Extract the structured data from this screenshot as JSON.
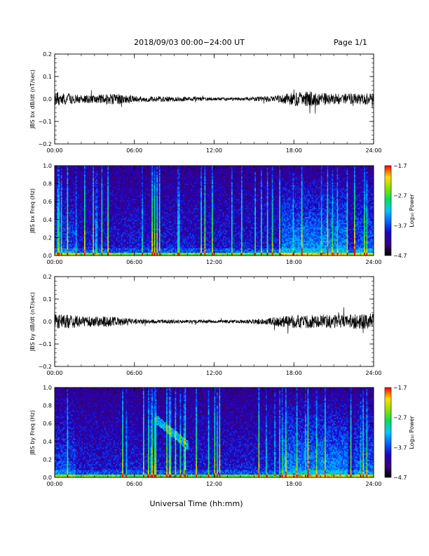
{
  "header": {
    "title": "2018/09/03  00:00−24:00 UT",
    "page": "Page 1/1"
  },
  "x_axis_title": "Universal Time (hh:mm)",
  "x_ticks": [
    "00:00",
    "06:00",
    "12:00",
    "18:00",
    "24:00"
  ],
  "chart_data": [
    {
      "type": "line",
      "ylabel": "JBS bx dB/dt (nT/sec)",
      "ylim": [
        -0.2,
        0.2
      ],
      "y_ticks": [
        "0.2",
        "0.1",
        "0.0",
        "−0.1",
        "−0.2"
      ],
      "xlim_hours": [
        0,
        24
      ],
      "envelope": {
        "x_hours": [
          0,
          1,
          2,
          3,
          4,
          5,
          6,
          8,
          10,
          12,
          14,
          16,
          17,
          18,
          19,
          20,
          21,
          22,
          23,
          24
        ],
        "amplitude": [
          0.025,
          0.02,
          0.015,
          0.015,
          0.02,
          0.02,
          0.012,
          0.01,
          0.008,
          0.006,
          0.006,
          0.01,
          0.015,
          0.025,
          0.03,
          0.025,
          0.02,
          0.02,
          0.02,
          0.025
        ]
      },
      "color": "#000000"
    },
    {
      "type": "heatmap",
      "ylabel": "JBS bx Freq (Hz)",
      "ylim": [
        0.0,
        1.0
      ],
      "y_ticks": [
        "1.0",
        "0.8",
        "0.6",
        "0.4",
        "0.2",
        "0.0"
      ],
      "xlim_hours": [
        0,
        24
      ],
      "colorbar": {
        "label": "Log₁₀ Power",
        "ticks": [
          "−1.7",
          "−2.7",
          "−3.7",
          "−4.7"
        ],
        "range": [
          -4.7,
          -1.7
        ]
      },
      "colorscale": [
        "#000000",
        "#3a0078",
        "#2000c0",
        "#0060ff",
        "#00c8ff",
        "#00e060",
        "#90e000",
        "#ffe000",
        "#ff0000"
      ]
    },
    {
      "type": "line",
      "ylabel": "JBS by dB/dt (nT/sec)",
      "ylim": [
        -0.2,
        0.2
      ],
      "y_ticks": [
        "0.2",
        "0.1",
        "0.0",
        "−0.1",
        "−0.2"
      ],
      "xlim_hours": [
        0,
        24
      ],
      "envelope": {
        "x_hours": [
          0,
          1,
          2,
          3,
          4,
          5,
          6,
          8,
          10,
          12,
          14,
          16,
          17,
          18,
          19,
          20,
          21,
          22,
          23,
          24
        ],
        "amplitude": [
          0.03,
          0.025,
          0.02,
          0.02,
          0.02,
          0.015,
          0.01,
          0.008,
          0.006,
          0.006,
          0.006,
          0.012,
          0.02,
          0.025,
          0.025,
          0.025,
          0.025,
          0.025,
          0.03,
          0.03
        ]
      },
      "color": "#000000"
    },
    {
      "type": "heatmap",
      "ylabel": "JBS by Freq (Hz)",
      "ylim": [
        0.0,
        1.0
      ],
      "y_ticks": [
        "1.0",
        "0.8",
        "0.6",
        "0.4",
        "0.2",
        "0.0"
      ],
      "xlim_hours": [
        0,
        24
      ],
      "colorbar": {
        "label": "Log₁₀ Power",
        "ticks": [
          "−1.7",
          "−2.7",
          "−3.7",
          "−4.7"
        ],
        "range": [
          -4.7,
          -1.7
        ]
      },
      "colorscale": [
        "#000000",
        "#3a0078",
        "#2000c0",
        "#0060ff",
        "#00c8ff",
        "#00e060",
        "#90e000",
        "#ffe000",
        "#ff0000"
      ]
    }
  ]
}
